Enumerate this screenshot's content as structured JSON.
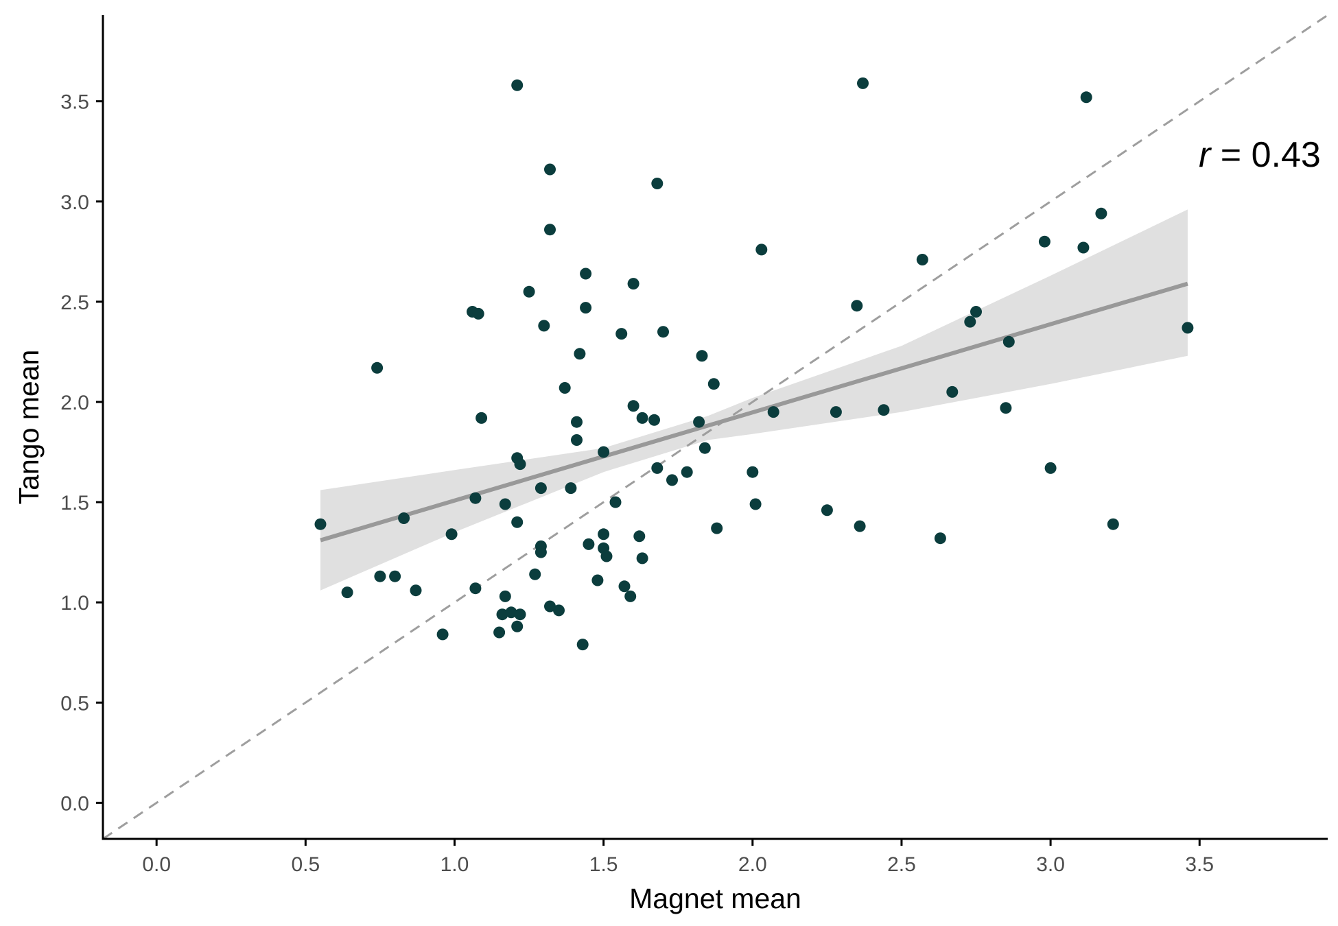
{
  "chart_data": {
    "type": "scatter",
    "title": "",
    "xlabel": "Magnet mean",
    "ylabel": "Tango mean",
    "xlim": [
      -0.18,
      3.93
    ],
    "ylim": [
      -0.18,
      3.93
    ],
    "x_ticks": [
      0.0,
      0.5,
      1.0,
      1.5,
      2.0,
      2.5,
      3.0,
      3.5
    ],
    "x_tick_labels": [
      "0.0",
      "0.5",
      "1.0",
      "1.5",
      "2.0",
      "2.5",
      "3.0",
      "3.5"
    ],
    "y_ticks": [
      0.0,
      0.5,
      1.0,
      1.5,
      2.0,
      2.5,
      3.0,
      3.5
    ],
    "y_tick_labels": [
      "0.0",
      "0.5",
      "1.0",
      "1.5",
      "2.0",
      "2.5",
      "3.0",
      "3.5"
    ],
    "grid": false,
    "legend": "none",
    "annotation": {
      "prefix": "r",
      "text": " = 0.43"
    },
    "colors": {
      "points": "#0b3d3d",
      "fit_line": "#999999",
      "ribbon": "#e0e0e0",
      "identity_line": "#9e9e9e",
      "axis": "#000000"
    },
    "identity_line": {
      "from": [
        -0.18,
        -0.18
      ],
      "to": [
        3.93,
        3.93
      ],
      "style": "dashed"
    },
    "fit_line": {
      "x": [
        0.55,
        3.46
      ],
      "y": [
        1.31,
        2.59
      ]
    },
    "ribbon": {
      "x": [
        0.55,
        1.0,
        1.5,
        1.85,
        2.0,
        2.5,
        3.0,
        3.46
      ],
      "lower": [
        1.06,
        1.35,
        1.65,
        1.81,
        1.84,
        1.95,
        2.09,
        2.23
      ],
      "upper": [
        1.56,
        1.66,
        1.77,
        1.93,
        2.02,
        2.28,
        2.63,
        2.96
      ]
    },
    "points": [
      {
        "x": 0.55,
        "y": 1.39
      },
      {
        "x": 0.64,
        "y": 1.05
      },
      {
        "x": 0.74,
        "y": 2.17
      },
      {
        "x": 0.75,
        "y": 1.13
      },
      {
        "x": 0.8,
        "y": 1.13
      },
      {
        "x": 0.83,
        "y": 1.42
      },
      {
        "x": 0.87,
        "y": 1.06
      },
      {
        "x": 0.96,
        "y": 0.84
      },
      {
        "x": 0.99,
        "y": 1.34
      },
      {
        "x": 1.06,
        "y": 2.45
      },
      {
        "x": 1.07,
        "y": 1.52
      },
      {
        "x": 1.07,
        "y": 1.07
      },
      {
        "x": 1.08,
        "y": 2.44
      },
      {
        "x": 1.09,
        "y": 1.92
      },
      {
        "x": 1.15,
        "y": 0.85
      },
      {
        "x": 1.16,
        "y": 0.94
      },
      {
        "x": 1.17,
        "y": 1.49
      },
      {
        "x": 1.17,
        "y": 1.03
      },
      {
        "x": 1.19,
        "y": 0.95
      },
      {
        "x": 1.21,
        "y": 3.58
      },
      {
        "x": 1.21,
        "y": 1.72
      },
      {
        "x": 1.21,
        "y": 1.4
      },
      {
        "x": 1.21,
        "y": 0.88
      },
      {
        "x": 1.22,
        "y": 1.69
      },
      {
        "x": 1.22,
        "y": 0.94
      },
      {
        "x": 1.25,
        "y": 2.55
      },
      {
        "x": 1.27,
        "y": 1.14
      },
      {
        "x": 1.29,
        "y": 1.57
      },
      {
        "x": 1.29,
        "y": 1.28
      },
      {
        "x": 1.29,
        "y": 1.25
      },
      {
        "x": 1.3,
        "y": 2.38
      },
      {
        "x": 1.32,
        "y": 3.16
      },
      {
        "x": 1.32,
        "y": 2.86
      },
      {
        "x": 1.32,
        "y": 0.98
      },
      {
        "x": 1.35,
        "y": 0.96
      },
      {
        "x": 1.37,
        "y": 2.07
      },
      {
        "x": 1.39,
        "y": 1.57
      },
      {
        "x": 1.41,
        "y": 1.9
      },
      {
        "x": 1.41,
        "y": 1.81
      },
      {
        "x": 1.42,
        "y": 2.24
      },
      {
        "x": 1.43,
        "y": 0.79
      },
      {
        "x": 1.44,
        "y": 2.64
      },
      {
        "x": 1.44,
        "y": 2.47
      },
      {
        "x": 1.45,
        "y": 1.29
      },
      {
        "x": 1.48,
        "y": 1.11
      },
      {
        "x": 1.5,
        "y": 1.75
      },
      {
        "x": 1.5,
        "y": 1.34
      },
      {
        "x": 1.5,
        "y": 1.27
      },
      {
        "x": 1.51,
        "y": 1.23
      },
      {
        "x": 1.54,
        "y": 1.5
      },
      {
        "x": 1.56,
        "y": 2.34
      },
      {
        "x": 1.57,
        "y": 1.08
      },
      {
        "x": 1.59,
        "y": 1.03
      },
      {
        "x": 1.6,
        "y": 2.59
      },
      {
        "x": 1.6,
        "y": 1.98
      },
      {
        "x": 1.62,
        "y": 1.33
      },
      {
        "x": 1.63,
        "y": 1.92
      },
      {
        "x": 1.63,
        "y": 1.22
      },
      {
        "x": 1.67,
        "y": 1.91
      },
      {
        "x": 1.68,
        "y": 3.09
      },
      {
        "x": 1.68,
        "y": 1.67
      },
      {
        "x": 1.7,
        "y": 2.35
      },
      {
        "x": 1.73,
        "y": 1.61
      },
      {
        "x": 1.78,
        "y": 1.65
      },
      {
        "x": 1.82,
        "y": 1.9
      },
      {
        "x": 1.83,
        "y": 2.23
      },
      {
        "x": 1.84,
        "y": 1.77
      },
      {
        "x": 1.87,
        "y": 2.09
      },
      {
        "x": 1.88,
        "y": 1.37
      },
      {
        "x": 2.0,
        "y": 1.65
      },
      {
        "x": 2.01,
        "y": 1.49
      },
      {
        "x": 2.03,
        "y": 2.76
      },
      {
        "x": 2.07,
        "y": 1.95
      },
      {
        "x": 2.25,
        "y": 1.46
      },
      {
        "x": 2.28,
        "y": 1.95
      },
      {
        "x": 2.35,
        "y": 2.48
      },
      {
        "x": 2.36,
        "y": 1.38
      },
      {
        "x": 2.37,
        "y": 3.59
      },
      {
        "x": 2.44,
        "y": 1.96
      },
      {
        "x": 2.57,
        "y": 2.71
      },
      {
        "x": 2.63,
        "y": 1.32
      },
      {
        "x": 2.67,
        "y": 2.05
      },
      {
        "x": 2.73,
        "y": 2.4
      },
      {
        "x": 2.75,
        "y": 2.45
      },
      {
        "x": 2.85,
        "y": 1.97
      },
      {
        "x": 2.86,
        "y": 2.3
      },
      {
        "x": 2.98,
        "y": 2.8
      },
      {
        "x": 3.0,
        "y": 1.67
      },
      {
        "x": 3.11,
        "y": 2.77
      },
      {
        "x": 3.12,
        "y": 3.52
      },
      {
        "x": 3.17,
        "y": 2.94
      },
      {
        "x": 3.21,
        "y": 1.39
      },
      {
        "x": 3.46,
        "y": 2.37
      }
    ]
  }
}
